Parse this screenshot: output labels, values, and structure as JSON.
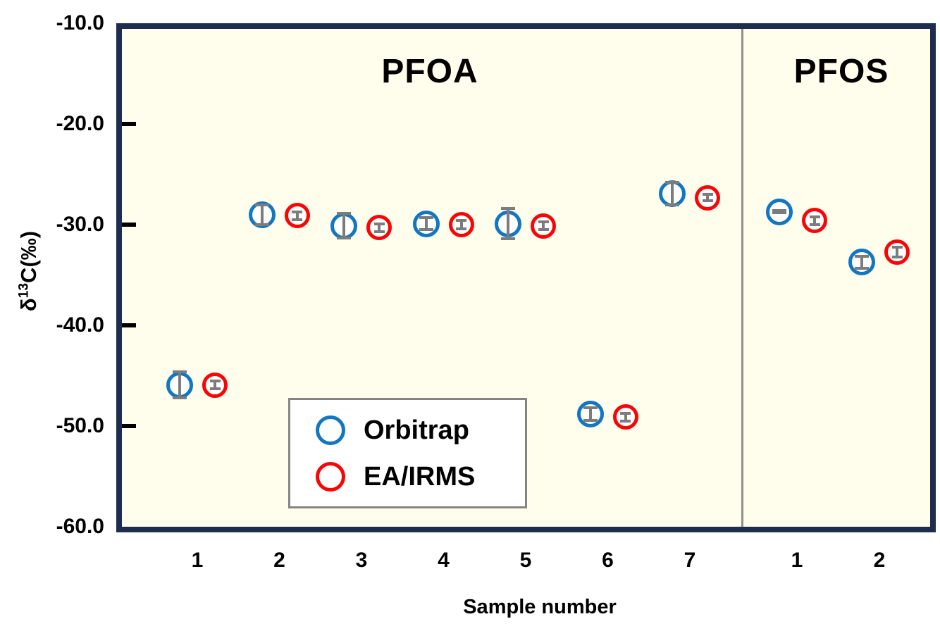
{
  "colors": {
    "plot_border": "#1e2d4d",
    "plot_background": "#fffdec",
    "orbitrap_blue": "#1176c4",
    "eairms_red": "#fa0505",
    "error_bar_gray": "#7c7c7c",
    "divider_gray": "#8f8f8f",
    "legend_border_gray": "#848484"
  },
  "chart_data": {
    "type": "scatter",
    "xlabel": "Sample number",
    "ylabel": "δ13C(‰)",
    "ylabel_parts": {
      "base": "δ",
      "sup": "13",
      "rest": "C(‰)"
    },
    "ylim": [
      -60,
      -10
    ],
    "y_ticks": [
      -10,
      -20,
      -30,
      -40,
      -50,
      -60
    ],
    "y_tick_labels": [
      "-10.0",
      "-20.0",
      "-30.0",
      "-40.0",
      "-50.0",
      "-60.0"
    ],
    "grid": false,
    "legend": {
      "position": "inside-bottom-left",
      "entries": [
        {
          "label": "Orbitrap",
          "color": "#1176c4"
        },
        {
          "label": "EA/IRMS",
          "color": "#fa0505"
        }
      ]
    },
    "groups": [
      {
        "label": "PFOA",
        "samples": [
          "1",
          "2",
          "3",
          "4",
          "5",
          "6",
          "7"
        ],
        "series": [
          {
            "name": "Orbitrap",
            "values": [
              -45.9,
              -29.0,
              -30.1,
              -29.9,
              -29.9,
              -48.8,
              -26.9
            ],
            "errors": [
              1.3,
              1.0,
              1.2,
              0.6,
              1.5,
              0.6,
              1.1
            ]
          },
          {
            "name": "EA/IRMS",
            "values": [
              -45.9,
              -29.1,
              -30.3,
              -30.0,
              -30.1,
              -49.1,
              -27.3
            ],
            "errors": [
              0.4,
              0.4,
              0.4,
              0.4,
              0.4,
              0.4,
              0.3
            ]
          }
        ]
      },
      {
        "label": "PFOS",
        "samples": [
          "1",
          "2"
        ],
        "series": [
          {
            "name": "Orbitrap",
            "values": [
              -28.7,
              -33.7
            ],
            "errors": [
              0.1,
              0.6
            ]
          },
          {
            "name": "EA/IRMS",
            "values": [
              -29.6,
              -32.7
            ],
            "errors": [
              0.4,
              0.5
            ]
          }
        ]
      }
    ]
  }
}
